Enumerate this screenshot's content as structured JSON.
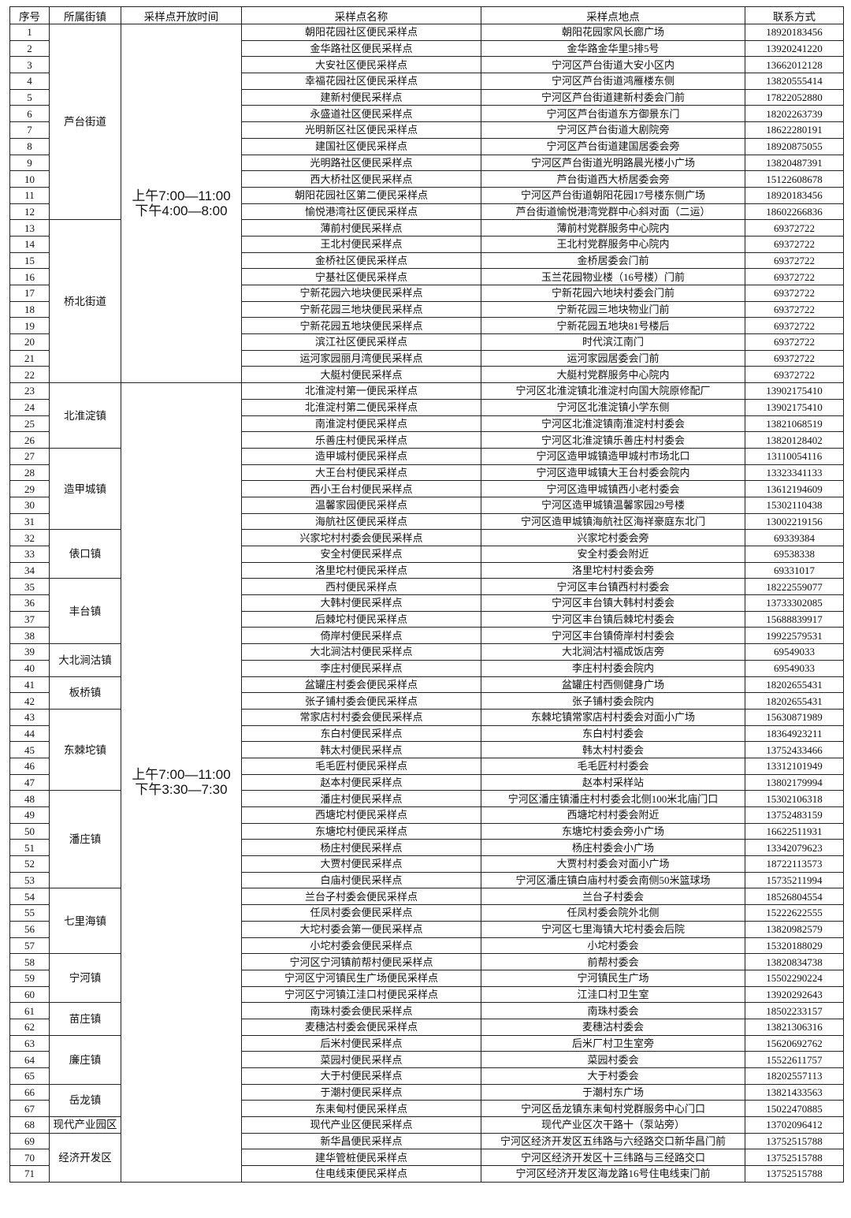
{
  "headers": [
    "序号",
    "所属街镇",
    "采样点开放时间",
    "采样点名称",
    "采样点地点",
    "联系方式"
  ],
  "time_groups": [
    {
      "lines": [
        "上午7:00—11:00",
        "下午4:00—8:00"
      ],
      "from": 1,
      "to": 22
    },
    {
      "lines": [
        "上午7:00—11:00",
        "下午3:30—7:30"
      ],
      "from": 23,
      "to": 71
    }
  ],
  "towns": [
    {
      "name": "芦台街道",
      "from": 1,
      "to": 12
    },
    {
      "name": "桥北街道",
      "from": 13,
      "to": 22
    },
    {
      "name": "北淮淀镇",
      "from": 23,
      "to": 26
    },
    {
      "name": "造甲城镇",
      "from": 27,
      "to": 31
    },
    {
      "name": "俵口镇",
      "from": 32,
      "to": 34
    },
    {
      "name": "丰台镇",
      "from": 35,
      "to": 38
    },
    {
      "name": "大北涧沽镇",
      "from": 39,
      "to": 40
    },
    {
      "name": "板桥镇",
      "from": 41,
      "to": 42
    },
    {
      "name": "东棘坨镇",
      "from": 43,
      "to": 47
    },
    {
      "name": "潘庄镇",
      "from": 48,
      "to": 53
    },
    {
      "name": "七里海镇",
      "from": 54,
      "to": 57
    },
    {
      "name": "宁河镇",
      "from": 58,
      "to": 60
    },
    {
      "name": "苗庄镇",
      "from": 61,
      "to": 62
    },
    {
      "name": "廉庄镇",
      "from": 63,
      "to": 65
    },
    {
      "name": "岳龙镇",
      "from": 66,
      "to": 67
    },
    {
      "name": "现代产业园区",
      "from": 68,
      "to": 68
    },
    {
      "name": "经济开发区",
      "from": 69,
      "to": 71
    }
  ],
  "rows": [
    [
      "1",
      "朝阳花园社区便民采样点",
      "朝阳花园家风长廊广场",
      "18920183456"
    ],
    [
      "2",
      "金华路社区便民采样点",
      "金华路金华里5排5号",
      "13920241220"
    ],
    [
      "3",
      "大安社区便民采样点",
      "宁河区芦台街道大安小区内",
      "13662012128"
    ],
    [
      "4",
      "幸福花园社区便民采样点",
      "宁河区芦台街道鸿雁楼东侧",
      "13820555414"
    ],
    [
      "5",
      "建新村便民采样点",
      "宁河区芦台街道建新村委会门前",
      "17822052880"
    ],
    [
      "6",
      "永盛道社区便民采样点",
      "宁河区芦台街道东方御景东门",
      "18202263739"
    ],
    [
      "7",
      "光明新区社区便民采样点",
      "宁河区芦台街道大剧院旁",
      "18622280191"
    ],
    [
      "8",
      "建国社区便民采样点",
      "宁河区芦台街道建国居委会旁",
      "18920875055"
    ],
    [
      "9",
      "光明路社区便民采样点",
      "宁河区芦台街道光明路晨光楼小广场",
      "13820487391"
    ],
    [
      "10",
      "西大桥社区便民采样点",
      "芦台街道西大桥居委会旁",
      "15122608678"
    ],
    [
      "11",
      "朝阳花园社区第二便民采样点",
      "宁河区芦台街道朝阳花园17号楼东侧广场",
      "18920183456"
    ],
    [
      "12",
      "愉悦港湾社区便民采样点",
      "芦台街道愉悦港湾党群中心斜对面（二运）",
      "18602266836"
    ],
    [
      "13",
      "薄前村便民采样点",
      "薄前村党群服务中心院内",
      "69372722"
    ],
    [
      "14",
      "王北村便民采样点",
      "王北村党群服务中心院内",
      "69372722"
    ],
    [
      "15",
      "金桥社区便民采样点",
      "金桥居委会门前",
      "69372722"
    ],
    [
      "16",
      "宁基社区便民采样点",
      "玉兰花园物业楼（16号楼）门前",
      "69372722"
    ],
    [
      "17",
      "宁新花园六地块便民采样点",
      "宁新花园六地块村委会门前",
      "69372722"
    ],
    [
      "18",
      "宁新花园三地块便民采样点",
      "宁新花园三地块物业门前",
      "69372722"
    ],
    [
      "19",
      "宁新花园五地块便民采样点",
      "宁新花园五地块81号楼后",
      "69372722"
    ],
    [
      "20",
      "滨江社区便民采样点",
      "时代滨江南门",
      "69372722"
    ],
    [
      "21",
      "运河家园丽月湾便民采样点",
      "运河家园居委会门前",
      "69372722"
    ],
    [
      "22",
      "大艇村便民采样点",
      "大艇村党群服务中心院内",
      "69372722"
    ],
    [
      "23",
      "北淮淀村第一便民采样点",
      "宁河区北淮淀镇北淮淀村向国大院原修配厂",
      "13902175410"
    ],
    [
      "24",
      "北淮淀村第二便民采样点",
      "宁河区北淮淀镇小学东侧",
      "13902175410"
    ],
    [
      "25",
      "南淮淀村便民采样点",
      "宁河区北淮淀镇南淮淀村村委会",
      "13821068519"
    ],
    [
      "26",
      "乐善庄村便民采样点",
      "宁河区北淮淀镇乐善庄村村委会",
      "13820128402"
    ],
    [
      "27",
      "造甲城村便民采样点",
      "宁河区造甲城镇造甲城村市场北口",
      "13110054116"
    ],
    [
      "28",
      "大王台村便民采样点",
      "宁河区造甲城镇大王台村委会院内",
      "13323341133"
    ],
    [
      "29",
      "西小王台村便民采样点",
      "宁河区造甲城镇西小老村委会",
      "13612194609"
    ],
    [
      "30",
      "温馨家园便民采样点",
      "宁河区造甲城镇温馨家园29号楼",
      "15302110438"
    ],
    [
      "31",
      "海航社区便民采样点",
      "宁河区造甲城镇海航社区海祥豪庭东北门",
      "13002219156"
    ],
    [
      "32",
      "兴家坨村村委会便民采样点",
      "兴家坨村委会旁",
      "69339384"
    ],
    [
      "33",
      "安全村便民采样点",
      "安全村委会附近",
      "69538338"
    ],
    [
      "34",
      "洛里坨村便民采样点",
      "洛里坨村村委会旁",
      "69331017"
    ],
    [
      "35",
      "西村便民采样点",
      "宁河区丰台镇西村村委会",
      "18222559077"
    ],
    [
      "36",
      "大韩村便民采样点",
      "宁河区丰台镇大韩村村委会",
      "13733302085"
    ],
    [
      "37",
      "后棘坨村便民采样点",
      "宁河区丰台镇后棘坨村委会",
      "15688839917"
    ],
    [
      "38",
      "倚岸村便民采样点",
      "宁河区丰台镇倚岸村村委会",
      "19922579531"
    ],
    [
      "39",
      "大北涧沽村便民采样点",
      "大北涧沽村福成饭店旁",
      "69549033"
    ],
    [
      "40",
      "李庄村便民采样点",
      "李庄村村委会院内",
      "69549033"
    ],
    [
      "41",
      "盆罐庄村委会便民采样点",
      "盆罐庄村西侧健身广场",
      "18202655431"
    ],
    [
      "42",
      "张子铺村委会便民采样点",
      "张子铺村委会院内",
      "18202655431"
    ],
    [
      "43",
      "常家店村村委会便民采样点",
      "东棘坨镇常家店村村委会对面小广场",
      "15630871989"
    ],
    [
      "44",
      "东白村便民采样点",
      "东白村村委会",
      "18364923211"
    ],
    [
      "45",
      "韩太村便民采样点",
      "韩太村村委会",
      "13752433466"
    ],
    [
      "46",
      "毛毛匠村便民采样点",
      "毛毛匠村村委会",
      "13312101949"
    ],
    [
      "47",
      "赵本村便民采样点",
      "赵本村采样站",
      "13802179994"
    ],
    [
      "48",
      "潘庄村便民采样点",
      "宁河区潘庄镇潘庄村村委会北侧100米北庙门口",
      "15302106318"
    ],
    [
      "49",
      "西塘坨村便民采样点",
      "西塘坨村村委会附近",
      "13752483159"
    ],
    [
      "50",
      "东塘坨村便民采样点",
      "东塘坨村委会旁小广场",
      "16622511931"
    ],
    [
      "51",
      "杨庄村便民采样点",
      "杨庄村委会小广场",
      "13342079623"
    ],
    [
      "52",
      "大贾村便民采样点",
      "大贾村村委会对面小广场",
      "18722113573"
    ],
    [
      "53",
      "白庙村便民采样点",
      "宁河区潘庄镇白庙村村委会南侧50米篮球场",
      "15735211994"
    ],
    [
      "54",
      "兰台子村委会便民采样点",
      "兰台子村委会",
      "18526804554"
    ],
    [
      "55",
      "任凤村委会便民采样点",
      "任凤村委会院外北侧",
      "15222622555"
    ],
    [
      "56",
      "大坨村委会第一便民采样点",
      "宁河区七里海镇大坨村委会后院",
      "13820982579"
    ],
    [
      "57",
      "小坨村委会便民采样点",
      "小坨村委会",
      "15320188029"
    ],
    [
      "58",
      "宁河区宁河镇前帮村便民采样点",
      "前帮村委会",
      "13820834738"
    ],
    [
      "59",
      "宁河区宁河镇民生广场便民采样点",
      "宁河镇民生广场",
      "15502290224"
    ],
    [
      "60",
      "宁河区宁河镇江洼口村便民采样点",
      "江洼口村卫生室",
      "13920292643"
    ],
    [
      "61",
      "南珠村委会便民采样点",
      "南珠村委会",
      "18502233157"
    ],
    [
      "62",
      "麦穗沽村委会便民采样点",
      "麦穗沽村委会",
      "13821306316"
    ],
    [
      "63",
      "后米村便民采样点",
      "后米厂村卫生室旁",
      "15620692762"
    ],
    [
      "64",
      "菜园村便民采样点",
      "菜园村委会",
      "15522611757"
    ],
    [
      "65",
      "大于村便民采样点",
      "大于村委会",
      "18202557113"
    ],
    [
      "66",
      "于潮村便民采样点",
      "于潮村东广场",
      "13821433563"
    ],
    [
      "67",
      "东耒甸村便民采样点",
      "宁河区岳龙镇东耒甸村党群服务中心门口",
      "15022470885"
    ],
    [
      "68",
      "现代产业区便民采样点",
      "现代产业区次干路十（泵站旁）",
      "13702096412"
    ],
    [
      "69",
      "新华昌便民采样点",
      "宁河区经济开发区五纬路与六经路交口新华昌门前",
      "13752515788"
    ],
    [
      "70",
      "建华管桩便民采样点",
      "宁河区经济开发区十三纬路与三经路交口",
      "13752515788"
    ],
    [
      "71",
      "住电线束便民采样点",
      "宁河区经济开发区海龙路16号住电线束门前",
      "13752515788"
    ]
  ]
}
